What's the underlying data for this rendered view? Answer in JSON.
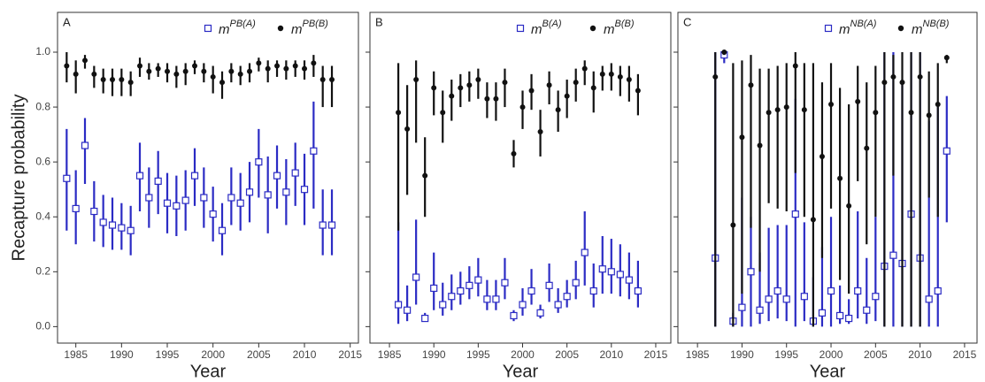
{
  "chart_data": [
    {
      "type": "errorbar",
      "panel_label": "A",
      "y_label": "Recapture probability",
      "x_label": "Year",
      "xlim": [
        1983,
        2015.9
      ],
      "ylim": [
        -0.06,
        1.145
      ],
      "xticks": [
        1985,
        1990,
        1995,
        2000,
        2005,
        2010,
        2015
      ],
      "yticks": [
        {
          "value": 0,
          "label": "0.0"
        },
        {
          "value": 0.2,
          "label": "0.2"
        },
        {
          "value": 0.4,
          "label": "0.4"
        },
        {
          "value": 0.6,
          "label": "0.6"
        },
        {
          "value": 0.8,
          "label": "0.8"
        },
        {
          "value": 1,
          "label": "1.0"
        }
      ],
      "x": [
        1984,
        1985,
        1986,
        1987,
        1988,
        1989,
        1990,
        1991,
        1992,
        1993,
        1994,
        1995,
        1996,
        1997,
        1998,
        1999,
        2000,
        2001,
        2002,
        2003,
        2004,
        2005,
        2006,
        2007,
        2008,
        2009,
        2010,
        2011,
        2012,
        2013
      ],
      "series": [
        {
          "name": "m",
          "superscript": "PB(A)",
          "color": "#2b2bc4",
          "marker": "open-square",
          "values": [
            0.54,
            0.43,
            0.66,
            0.42,
            0.38,
            0.37,
            0.36,
            0.35,
            0.55,
            0.47,
            0.53,
            0.45,
            0.44,
            0.46,
            0.55,
            0.47,
            0.41,
            0.35,
            0.47,
            0.45,
            0.49,
            0.6,
            0.48,
            0.55,
            0.49,
            0.56,
            0.5,
            0.64,
            0.37,
            0.37
          ],
          "lower": [
            0.35,
            0.3,
            0.52,
            0.31,
            0.29,
            0.28,
            0.28,
            0.26,
            0.42,
            0.36,
            0.41,
            0.34,
            0.33,
            0.35,
            0.44,
            0.36,
            0.31,
            0.26,
            0.37,
            0.35,
            0.38,
            0.47,
            0.34,
            0.43,
            0.37,
            0.44,
            0.37,
            0.43,
            0.26,
            0.26
          ],
          "upper": [
            0.72,
            0.57,
            0.76,
            0.53,
            0.48,
            0.47,
            0.45,
            0.44,
            0.67,
            0.58,
            0.64,
            0.56,
            0.55,
            0.57,
            0.65,
            0.58,
            0.51,
            0.45,
            0.58,
            0.56,
            0.6,
            0.72,
            0.62,
            0.66,
            0.61,
            0.67,
            0.63,
            0.82,
            0.5,
            0.5
          ]
        },
        {
          "name": "m",
          "superscript": "PB(B)",
          "color": "#111111",
          "marker": "dot",
          "values": [
            0.95,
            0.92,
            0.97,
            0.92,
            0.9,
            0.9,
            0.9,
            0.89,
            0.95,
            0.93,
            0.94,
            0.93,
            0.92,
            0.93,
            0.95,
            0.93,
            0.91,
            0.89,
            0.93,
            0.92,
            0.93,
            0.96,
            0.94,
            0.95,
            0.94,
            0.95,
            0.94,
            0.96,
            0.9,
            0.9
          ],
          "lower": [
            0.89,
            0.85,
            0.94,
            0.87,
            0.85,
            0.84,
            0.84,
            0.84,
            0.91,
            0.9,
            0.91,
            0.89,
            0.87,
            0.88,
            0.92,
            0.89,
            0.85,
            0.83,
            0.89,
            0.88,
            0.89,
            0.93,
            0.89,
            0.91,
            0.9,
            0.91,
            0.9,
            0.91,
            0.8,
            0.8
          ],
          "upper": [
            1.0,
            0.97,
            0.99,
            0.95,
            0.94,
            0.94,
            0.94,
            0.93,
            0.98,
            0.96,
            0.96,
            0.96,
            0.95,
            0.96,
            0.97,
            0.96,
            0.95,
            0.93,
            0.96,
            0.95,
            0.96,
            0.98,
            0.97,
            0.97,
            0.97,
            0.97,
            0.97,
            0.99,
            0.95,
            0.95
          ]
        }
      ]
    },
    {
      "type": "errorbar",
      "panel_label": "B",
      "x_label": "Year",
      "xlim": [
        1982.8,
        2016.7
      ],
      "ylim": [
        -0.06,
        1.145
      ],
      "xticks": [
        1985,
        1990,
        1995,
        2000,
        2005,
        2010,
        2015
      ],
      "yticks": [
        0,
        0.2,
        0.4,
        0.6,
        0.8,
        1
      ],
      "x": [
        1986,
        1987,
        1988,
        1989,
        1990,
        1991,
        1992,
        1993,
        1994,
        1995,
        1996,
        1997,
        1998,
        1999,
        2000,
        2001,
        2002,
        2003,
        2004,
        2005,
        2006,
        2007,
        2008,
        2009,
        2010,
        2011,
        2012,
        2013
      ],
      "series": [
        {
          "name": "m",
          "superscript": "B(A)",
          "color": "#2b2bc4",
          "marker": "open-square",
          "values": [
            0.08,
            0.06,
            0.18,
            0.03,
            0.14,
            0.08,
            0.11,
            0.13,
            0.15,
            0.17,
            0.1,
            0.1,
            0.16,
            0.04,
            0.08,
            0.13,
            0.05,
            0.15,
            0.08,
            0.11,
            0.16,
            0.27,
            0.13,
            0.21,
            0.2,
            0.19,
            0.17,
            0.13
          ],
          "lower": [
            0.01,
            0.02,
            0.08,
            0.02,
            0.06,
            0.04,
            0.06,
            0.08,
            0.1,
            0.11,
            0.06,
            0.06,
            0.1,
            0.02,
            0.04,
            0.08,
            0.03,
            0.09,
            0.05,
            0.07,
            0.1,
            0.15,
            0.07,
            0.12,
            0.12,
            0.11,
            0.1,
            0.07
          ],
          "upper": [
            0.38,
            0.15,
            0.39,
            0.05,
            0.27,
            0.16,
            0.19,
            0.2,
            0.22,
            0.25,
            0.17,
            0.17,
            0.25,
            0.06,
            0.14,
            0.21,
            0.08,
            0.23,
            0.14,
            0.17,
            0.24,
            0.42,
            0.23,
            0.33,
            0.32,
            0.3,
            0.27,
            0.24
          ]
        },
        {
          "name": "m",
          "superscript": "B(B)",
          "color": "#111111",
          "marker": "dot",
          "values": [
            0.78,
            0.72,
            0.9,
            0.55,
            0.87,
            0.78,
            0.84,
            0.87,
            0.88,
            0.9,
            0.83,
            0.83,
            0.89,
            0.63,
            0.8,
            0.86,
            0.71,
            0.88,
            0.79,
            0.84,
            0.89,
            0.94,
            0.87,
            0.92,
            0.92,
            0.91,
            0.9,
            0.86
          ],
          "lower": [
            0.35,
            0.48,
            0.67,
            0.4,
            0.77,
            0.67,
            0.75,
            0.8,
            0.82,
            0.83,
            0.76,
            0.75,
            0.8,
            0.58,
            0.72,
            0.79,
            0.62,
            0.81,
            0.71,
            0.76,
            0.82,
            0.88,
            0.78,
            0.86,
            0.86,
            0.84,
            0.82,
            0.77
          ],
          "upper": [
            0.96,
            0.88,
            0.97,
            0.69,
            0.93,
            0.86,
            0.9,
            0.92,
            0.93,
            0.94,
            0.89,
            0.89,
            0.94,
            0.68,
            0.86,
            0.92,
            0.79,
            0.93,
            0.86,
            0.9,
            0.94,
            0.97,
            0.93,
            0.95,
            0.96,
            0.95,
            0.95,
            0.92
          ]
        }
      ]
    },
    {
      "type": "errorbar",
      "panel_label": "C",
      "x_label": "Year",
      "xlim": [
        1982.8,
        2016.4
      ],
      "ylim": [
        -0.06,
        1.145
      ],
      "xticks": [
        1985,
        1990,
        1995,
        2000,
        2005,
        2010,
        2015
      ],
      "yticks": [
        0,
        0.2,
        0.4,
        0.6,
        0.8,
        1
      ],
      "x": [
        1987,
        1988,
        1989,
        1990,
        1991,
        1992,
        1993,
        1994,
        1995,
        1996,
        1997,
        1998,
        1999,
        2000,
        2001,
        2002,
        2003,
        2004,
        2005,
        2006,
        2007,
        2008,
        2009,
        2010,
        2011,
        2012,
        2013
      ],
      "series": [
        {
          "name": "m",
          "superscript": "NB(A)",
          "color": "#2b2bc4",
          "marker": "open-square",
          "values": [
            0.25,
            0.99,
            0.02,
            0.07,
            0.2,
            0.06,
            0.1,
            0.13,
            0.1,
            0.41,
            0.11,
            0.02,
            0.05,
            0.13,
            0.04,
            0.03,
            0.13,
            0.06,
            0.11,
            0.22,
            0.26,
            0.23,
            0.41,
            0.25,
            0.1,
            0.13,
            0.64
          ],
          "lower": [
            0,
            0.96,
            0,
            0,
            0,
            0.01,
            0.02,
            0.03,
            0.02,
            0,
            0.02,
            0,
            0,
            0,
            0.01,
            0.01,
            0.03,
            0.01,
            0.02,
            0,
            0,
            0,
            0,
            0,
            0,
            0,
            0.38
          ],
          "upper": [
            1,
            1,
            0.05,
            0.47,
            0.4,
            0.27,
            0.36,
            0.37,
            0.37,
            0.83,
            0.38,
            0.18,
            0.29,
            0.4,
            0.15,
            0.1,
            0.42,
            0.25,
            0.4,
            1,
            1,
            0.9,
            1,
            1,
            0.75,
            0.8,
            0.84
          ]
        },
        {
          "name": "m",
          "superscript": "NB(B)",
          "color": "#111111",
          "marker": "dot",
          "values": [
            0.91,
            1,
            0.37,
            0.69,
            0.88,
            0.66,
            0.78,
            0.79,
            0.8,
            0.95,
            0.79,
            0.39,
            0.62,
            0.81,
            0.54,
            0.44,
            0.82,
            0.65,
            0.78,
            0.89,
            0.91,
            0.89,
            0.78,
            0.91,
            0.77,
            0.81,
            0.98
          ],
          "lower": [
            0,
            0.99,
            0,
            0.12,
            0.36,
            0.2,
            0.45,
            0.43,
            0.42,
            0.56,
            0.4,
            0,
            0.25,
            0.43,
            0.17,
            0.12,
            0.53,
            0.3,
            0.4,
            0,
            0.55,
            0,
            0,
            0,
            0.47,
            0.4,
            0.96
          ],
          "upper": [
            1,
            1,
            0.96,
            0.97,
            0.99,
            0.94,
            0.94,
            0.95,
            0.96,
            1,
            0.96,
            0.96,
            0.89,
            0.96,
            0.87,
            0.81,
            0.95,
            0.89,
            0.95,
            1,
            0.99,
            1,
            1,
            1,
            0.93,
            0.96,
            0.99
          ]
        }
      ]
    }
  ]
}
